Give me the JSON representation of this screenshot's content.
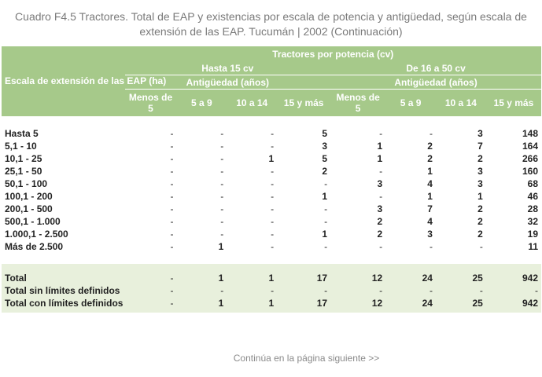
{
  "title_line1": "Cuadro F4.5 Tractores. Total de EAP y existencias por escala de potencia y antigüedad, según escala de",
  "title_line2": "extensión de las EAP.  Tucumán | 2002 (Continuación)",
  "header": {
    "row_header": "Escala de extensión de las EAP (ha)",
    "group_label": "Tractores por potencia (cv)",
    "sub_groups": [
      "Hasta 15 cv",
      "De 16 a 50 cv"
    ],
    "age_label": "Antigüedad (años)",
    "age_columns": [
      "Menos de 5",
      "5 a 9",
      "10 a 14",
      "15 y más",
      "Menos de 5",
      "5 a 9",
      "10 a 14",
      "15 y más"
    ]
  },
  "rows": [
    {
      "label": "Hasta 5",
      "values": [
        "-",
        "-",
        "-",
        "5",
        "-",
        "-",
        "3",
        "148"
      ]
    },
    {
      "label": "5,1 - 10",
      "values": [
        "-",
        "-",
        "-",
        "3",
        "1",
        "2",
        "7",
        "164"
      ]
    },
    {
      "label": "10,1 - 25",
      "values": [
        "-",
        "-",
        "1",
        "5",
        "1",
        "2",
        "2",
        "266"
      ]
    },
    {
      "label": "25,1 - 50",
      "values": [
        "-",
        "-",
        "-",
        "2",
        "-",
        "1",
        "3",
        "160"
      ]
    },
    {
      "label": "50,1 - 100",
      "values": [
        "-",
        "-",
        "-",
        "-",
        "3",
        "4",
        "3",
        "68"
      ]
    },
    {
      "label": "100,1 - 200",
      "values": [
        "-",
        "-",
        "-",
        "1",
        "-",
        "1",
        "1",
        "46"
      ]
    },
    {
      "label": "200,1 - 500",
      "values": [
        "-",
        "-",
        "-",
        "-",
        "3",
        "7",
        "2",
        "28"
      ]
    },
    {
      "label": "500,1 - 1.000",
      "values": [
        "-",
        "-",
        "-",
        "-",
        "2",
        "4",
        "2",
        "32"
      ]
    },
    {
      "label": "1.000,1 - 2.500",
      "values": [
        "-",
        "-",
        "-",
        "1",
        "2",
        "3",
        "2",
        "19"
      ]
    },
    {
      "label": "Más de 2.500",
      "values": [
        "-",
        "1",
        "-",
        "-",
        "-",
        "-",
        "-",
        "11"
      ]
    }
  ],
  "totals": [
    {
      "label": "Total",
      "values": [
        "-",
        "1",
        "1",
        "17",
        "12",
        "24",
        "25",
        "942"
      ]
    },
    {
      "label": "Total sin límites definidos",
      "values": [
        "-",
        "-",
        "-",
        "-",
        "-",
        "-",
        "-",
        "-"
      ]
    },
    {
      "label": "Total con límites definidos",
      "values": [
        "-",
        "1",
        "1",
        "17",
        "12",
        "24",
        "25",
        "942"
      ]
    }
  ],
  "footer_link": "Continúa en la página siguiente >>"
}
